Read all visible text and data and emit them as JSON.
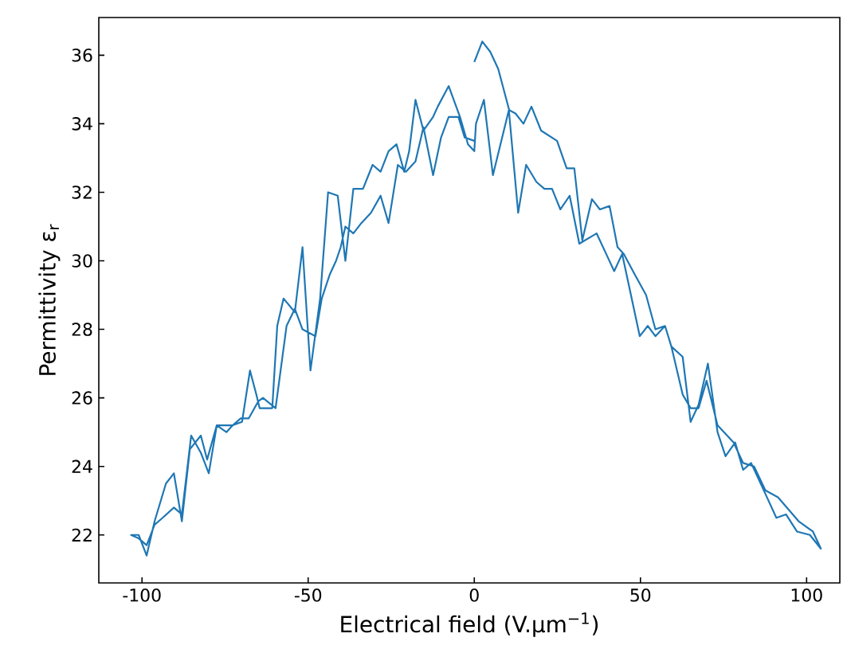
{
  "chart_data": {
    "type": "line",
    "xlabel": "Electrical field (V.μm$^{−1}$)",
    "ylabel": "Permittivity ε$_{r}$",
    "xlim": [
      -113,
      110
    ],
    "ylim": [
      20.6,
      37.1
    ],
    "xticks": [
      -100,
      -50,
      0,
      50,
      100
    ],
    "yticks": [
      22,
      24,
      26,
      28,
      30,
      32,
      34,
      36
    ],
    "grid": false,
    "series": [
      {
        "color": "#1f77b4",
        "x": [
          0,
          2.4,
          4.8,
          7.2,
          10.5,
          12.4,
          14.8,
          17.2,
          20.1,
          24.9,
          27.8,
          30.1,
          32.5,
          35.4,
          37.8,
          40.7,
          43.1,
          45.0,
          48.3,
          51.7,
          54.5,
          57.4,
          59.3,
          62.7,
          65.1,
          67.5,
          69.9,
          73.2,
          78.0,
          80.9,
          84.2,
          87.6,
          91.4,
          97.6,
          101.9,
          104.3,
          101,
          97.1,
          93.8,
          90.9,
          87.6,
          83.3,
          80.9,
          78.5,
          75.6,
          73.2,
          70.3,
          67.5,
          65.1,
          62.7,
          59.3,
          57.4,
          54.5,
          52.2,
          49.8,
          44.5,
          42.1,
          36.8,
          31.6,
          28.7,
          25.9,
          23.4,
          21.1,
          18.7,
          15.6,
          13.2,
          10.4,
          5.6,
          2.9,
          0.5,
          0,
          -1.9,
          -4.3,
          -7.7,
          -11,
          -12.4,
          -15.3,
          -17.7,
          -19.6,
          -21.1,
          -23.4,
          -25.8,
          -28.2,
          -30.6,
          -33.5,
          -36.4,
          -38.8,
          -41.1,
          -44,
          -46.4,
          -49.3,
          -51.7,
          -54,
          -57.4,
          -59.3,
          -60.8,
          -64.6,
          -65.6,
          -67.5,
          -69.9,
          -72.7,
          -74.6,
          -77.5,
          -80.4,
          -82.3,
          -85.6,
          -88,
          -90.4,
          -92.8,
          -96.2,
          -98.6,
          -101,
          -103.3,
          -101,
          -98.6,
          -96.2,
          -93.8,
          -90.4,
          -88,
          -85.2,
          -82.3,
          -79.9,
          -77.5,
          -72.7,
          -70.3,
          -67.9,
          -65,
          -63.6,
          -59.8,
          -56.5,
          -54,
          -51.7,
          -47.8,
          -45.9,
          -43.5,
          -41.6,
          -40.2,
          -38.8,
          -36.4,
          -34,
          -31.1,
          -28.2,
          -25.8,
          -23,
          -20.6,
          -17.7,
          -15.3,
          -12.4,
          -10,
          -7.7,
          -4.8,
          -2.9,
          0
        ],
        "values": [
          35.8,
          36.4,
          36.1,
          35.6,
          34.4,
          34.3,
          34.0,
          34.5,
          33.8,
          33.5,
          32.7,
          32.7,
          30.6,
          31.8,
          31.5,
          31.6,
          30.4,
          30.2,
          29.6,
          29.0,
          28.0,
          28.1,
          27.5,
          26.1,
          25.7,
          25.7,
          26.5,
          25.2,
          24.7,
          24.1,
          24.0,
          23.3,
          23.1,
          22.4,
          22.1,
          21.6,
          22.0,
          22.1,
          22.6,
          22.5,
          23.2,
          24.1,
          23.9,
          24.7,
          24.3,
          25.0,
          27.0,
          25.8,
          25.3,
          27.2,
          27.5,
          28.1,
          27.8,
          28.1,
          27.8,
          30.2,
          29.7,
          30.8,
          30.5,
          31.9,
          31.5,
          32.1,
          32.1,
          32.3,
          32.8,
          31.4,
          34.4,
          32.5,
          34.7,
          34.0,
          33.2,
          33.4,
          34.2,
          35.1,
          34.5,
          34.2,
          33.8,
          34.7,
          33.2,
          32.6,
          33.4,
          33.2,
          32.6,
          32.8,
          32.1,
          32.1,
          30.0,
          31.9,
          32.0,
          28.9,
          26.8,
          30.4,
          28.5,
          28.9,
          28.1,
          25.7,
          25.7,
          26.1,
          26.8,
          25.3,
          25.2,
          25.0,
          25.2,
          24.2,
          24.9,
          24.5,
          22.4,
          23.8,
          23.5,
          22.4,
          21.4,
          22.0,
          22.0,
          21.9,
          21.7,
          22.3,
          22.5,
          22.8,
          22.6,
          24.9,
          24.4,
          23.8,
          25.2,
          25.2,
          25.4,
          25.4,
          25.9,
          26.0,
          25.7,
          28.1,
          28.6,
          28.0,
          27.8,
          28.9,
          29.6,
          30.0,
          30.4,
          31.0,
          30.8,
          31.1,
          31.4,
          31.9,
          31.1,
          32.8,
          32.6,
          32.9,
          33.9,
          32.5,
          33.6,
          34.2,
          34.2,
          33.6,
          33.5
        ]
      }
    ]
  }
}
